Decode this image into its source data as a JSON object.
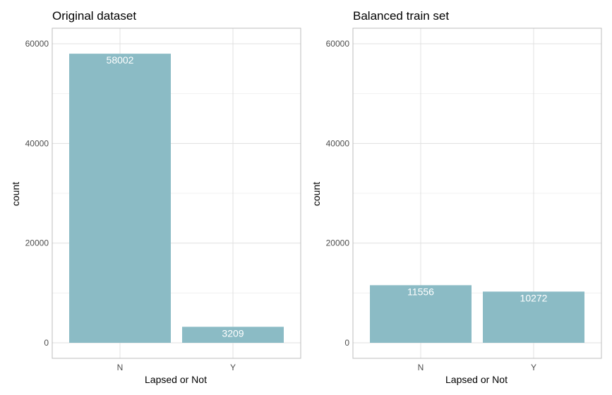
{
  "colors": {
    "bar": "#8bbbc5",
    "grid_major": "#e0e0e0",
    "grid_minor": "#f0f0f0",
    "panel_border": "#bdbdbd",
    "tick_text": "#4d4d4d",
    "label_text": "#ffffff"
  },
  "chart_data": [
    {
      "type": "bar",
      "title": "Original dataset",
      "xlabel": "Lapsed or Not",
      "ylabel": "count",
      "categories": [
        "N",
        "Y"
      ],
      "values": [
        58002,
        3209
      ],
      "data_labels": [
        "58002",
        "3209"
      ],
      "ylim": [
        0,
        63000
      ],
      "yticks": [
        0,
        20000,
        40000,
        60000
      ],
      "ytick_labels": [
        "0",
        "20000",
        "40000",
        "60000"
      ],
      "grid": true
    },
    {
      "type": "bar",
      "title": "Balanced train set",
      "xlabel": "Lapsed or Not",
      "ylabel": "count",
      "categories": [
        "N",
        "Y"
      ],
      "values": [
        11556,
        10272
      ],
      "data_labels": [
        "11556",
        "10272"
      ],
      "ylim": [
        0,
        63000
      ],
      "yticks": [
        0,
        20000,
        40000,
        60000
      ],
      "ytick_labels": [
        "0",
        "20000",
        "40000",
        "60000"
      ],
      "grid": true
    }
  ]
}
